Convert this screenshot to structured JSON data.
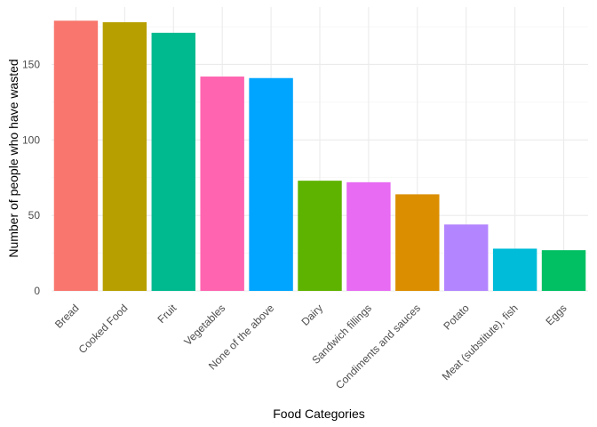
{
  "chart_data": {
    "type": "bar",
    "xlabel": "Food Categories",
    "ylabel": "Number of people who have wasted",
    "ylim": [
      0,
      188
    ],
    "yticks": [
      0,
      50,
      100,
      150
    ],
    "grid": true,
    "legend": "none",
    "categories": [
      "Bread",
      "Cooked Food",
      "Fruit",
      "Vegetables",
      "None of the above",
      "Dairy",
      "Sandwich fillings",
      "Condiments and sauces",
      "Potato",
      "Meat (substitute), fish",
      "Eggs"
    ],
    "values": [
      179,
      178,
      171,
      142,
      141,
      73,
      72,
      64,
      44,
      28,
      27
    ],
    "colors": [
      "#F8766D",
      "#B79F00",
      "#00BA8F",
      "#FF64B0",
      "#00A5FF",
      "#5EB300",
      "#E76BF3",
      "#DB8E00",
      "#B385FF",
      "#00BCD8",
      "#00C063"
    ]
  }
}
